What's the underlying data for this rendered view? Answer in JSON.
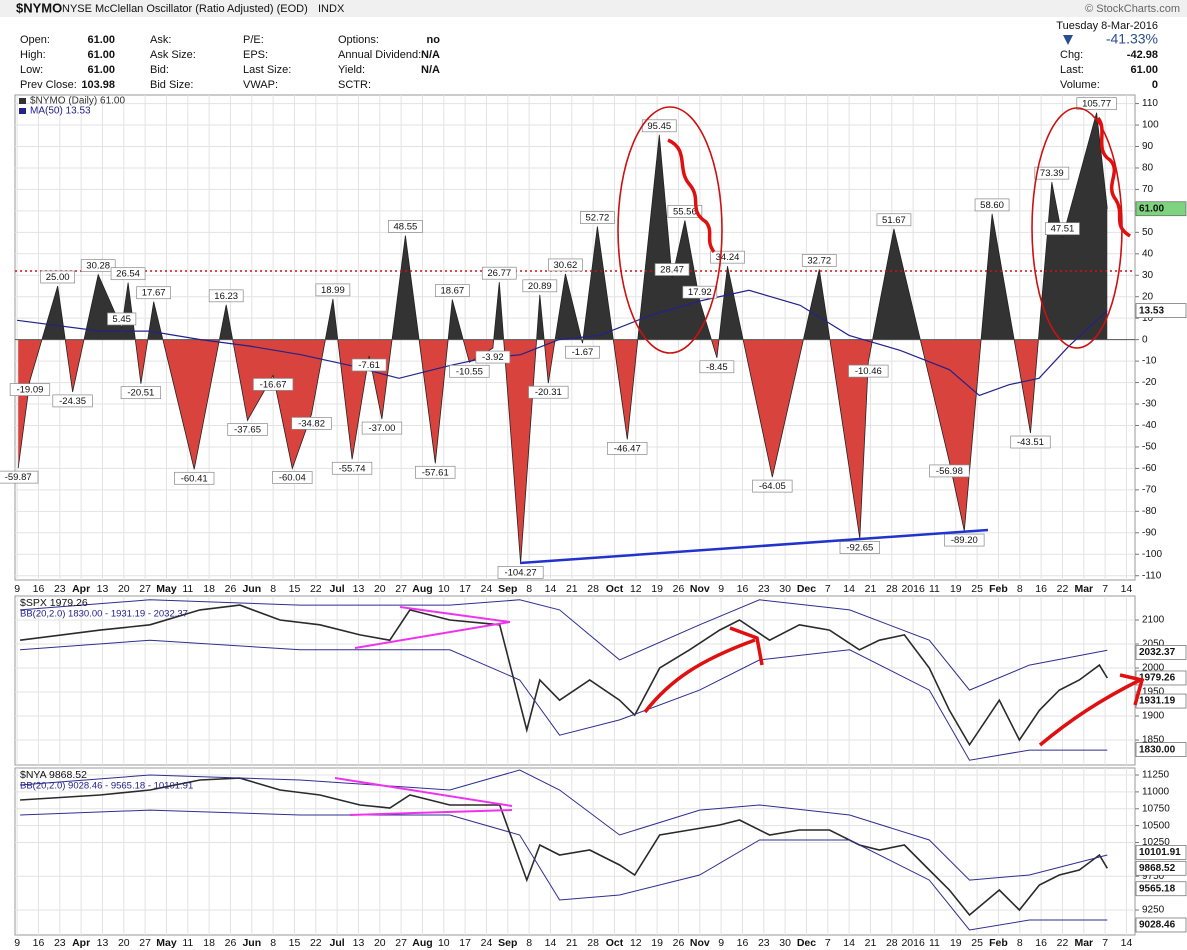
{
  "header": {
    "symbol": "$NYMO",
    "name": "NYSE McClellan Oscillator (Ratio Adjusted) (EOD)",
    "exchange": "INDX",
    "copyright": "© StockCharts.com",
    "date": "Tuesday  8-Mar-2016",
    "change_pct": "-41.33%",
    "fields": [
      [
        {
          "label": "Open:",
          "value": "61.00"
        },
        {
          "label": "Ask:"
        },
        {
          "label": "P/E:"
        },
        {
          "label": "Options:",
          "value": "no"
        }
      ],
      [
        {
          "label": "High:",
          "value": "61.00"
        },
        {
          "label": "Ask Size:"
        },
        {
          "label": "EPS:"
        },
        {
          "label": "Annual Dividend:",
          "value": "N/A"
        }
      ],
      [
        {
          "label": "Low:",
          "value": "61.00"
        },
        {
          "label": "Bid:"
        },
        {
          "label": "Last Size:"
        },
        {
          "label": "Yield:",
          "value": "N/A"
        }
      ],
      [
        {
          "label": "Prev Close:",
          "value": "103.98"
        },
        {
          "label": "Bid Size:"
        },
        {
          "label": "VWAP:"
        },
        {
          "label": "SCTR:"
        }
      ]
    ],
    "quote": [
      {
        "label": "Chg:",
        "value": "-42.98"
      },
      {
        "label": "Last:",
        "value": "61.00"
      },
      {
        "label": "Volume:",
        "value": "0"
      }
    ]
  },
  "chart_data": [
    {
      "type": "area",
      "xlim": [
        -0.1,
        52.4
      ],
      "xticks": [
        {
          "value": 0,
          "label": "9"
        },
        {
          "value": 1,
          "label": "16"
        },
        {
          "value": 2,
          "label": "23"
        },
        {
          "value": 3,
          "label": "Apr"
        },
        {
          "value": 4,
          "label": "13"
        },
        {
          "value": 5,
          "label": "20"
        },
        {
          "value": 6,
          "label": "27"
        },
        {
          "value": 7,
          "label": "May"
        },
        {
          "value": 8,
          "label": "11"
        },
        {
          "value": 9,
          "label": "18"
        },
        {
          "value": 10,
          "label": "26"
        },
        {
          "value": 11,
          "label": "Jun"
        },
        {
          "value": 12,
          "label": "8"
        },
        {
          "value": 13,
          "label": "15"
        },
        {
          "value": 14,
          "label": "22"
        },
        {
          "value": 15,
          "label": "Jul"
        },
        {
          "value": 16,
          "label": "13"
        },
        {
          "value": 17,
          "label": "20"
        },
        {
          "value": 18,
          "label": "27"
        },
        {
          "value": 19,
          "label": "Aug"
        },
        {
          "value": 20,
          "label": "10"
        },
        {
          "value": 21,
          "label": "17"
        },
        {
          "value": 22,
          "label": "24"
        },
        {
          "value": 23,
          "label": "Sep"
        },
        {
          "value": 24,
          "label": "8"
        },
        {
          "value": 25,
          "label": "14"
        },
        {
          "value": 26,
          "label": "21"
        },
        {
          "value": 27,
          "label": "28"
        },
        {
          "value": 28,
          "label": "Oct"
        },
        {
          "value": 29,
          "label": "12"
        },
        {
          "value": 30,
          "label": "19"
        },
        {
          "value": 31,
          "label": "26"
        },
        {
          "value": 32,
          "label": "Nov"
        },
        {
          "value": 33,
          "label": "9"
        },
        {
          "value": 34,
          "label": "16"
        },
        {
          "value": 35,
          "label": "23"
        },
        {
          "value": 36,
          "label": "30"
        },
        {
          "value": 37,
          "label": "Dec"
        },
        {
          "value": 38,
          "label": "7"
        },
        {
          "value": 39,
          "label": "14"
        },
        {
          "value": 40,
          "label": "21"
        },
        {
          "value": 41,
          "label": "28"
        },
        {
          "value": 42,
          "label": "2016"
        },
        {
          "value": 43,
          "label": "11"
        },
        {
          "value": 44,
          "label": "19"
        },
        {
          "value": 45,
          "label": "25"
        },
        {
          "value": 46,
          "label": "Feb"
        },
        {
          "value": 47,
          "label": "8"
        },
        {
          "value": 48,
          "label": "16"
        },
        {
          "value": 49,
          "label": "22"
        },
        {
          "value": 50,
          "label": "Mar"
        },
        {
          "value": 51,
          "label": "7"
        },
        {
          "value": 52,
          "label": "14"
        }
      ],
      "ylim": [
        -112,
        114
      ],
      "yticks": [
        -110,
        -100,
        -90,
        -80,
        -70,
        -60,
        -50,
        -40,
        -30,
        -20,
        -10,
        0,
        10,
        20,
        30,
        40,
        50,
        60,
        70,
        80,
        90,
        100,
        110
      ],
      "reference_line": 32,
      "negative_color": "#d9433d",
      "series": [
        {
          "name": "$NYMO (Daily) 61.00",
          "color": "#333333",
          "x": [
            0.05,
            0.6,
            1.9,
            2.6,
            3.8,
            4.9,
            5.2,
            5.8,
            6.4,
            8.3,
            9.8,
            10.8,
            12.0,
            12.9,
            13.8,
            14.8,
            15.7,
            16.5,
            17.1,
            18.2,
            19.6,
            20.4,
            21.2,
            22.3,
            22.6,
            23.6,
            24.5,
            24.9,
            25.7,
            26.5,
            27.2,
            28.6,
            30.1,
            30.7,
            31.3,
            32.0,
            32.8,
            33.3,
            35.4,
            37.6,
            39.5,
            39.9,
            41.1,
            43.7,
            44.4,
            45.7,
            47.5,
            48.5,
            49.0,
            50.6,
            51.1
          ],
          "values": [
            -59.87,
            -19.09,
            25.0,
            -24.35,
            30.28,
            5.45,
            26.54,
            -20.51,
            17.67,
            -60.41,
            16.23,
            -37.65,
            -16.67,
            -60.04,
            -34.82,
            18.99,
            -55.74,
            -7.61,
            -37.0,
            48.55,
            -57.61,
            18.67,
            -10.55,
            -3.92,
            26.77,
            -104.27,
            20.89,
            -20.31,
            30.62,
            -1.67,
            52.72,
            -46.47,
            95.45,
            28.47,
            55.56,
            17.92,
            -8.45,
            34.24,
            -64.05,
            32.72,
            -92.65,
            -10.46,
            51.67,
            -56.98,
            -89.2,
            58.6,
            -43.51,
            73.39,
            47.51,
            105.77,
            61.0
          ],
          "value_labels": [
            "-59.87",
            "-19.09",
            "25.00",
            "-24.35",
            "30.28",
            "5.45",
            "26.54",
            "-20.51",
            "17.67",
            "-60.41",
            "16.23",
            "-37.65",
            "-16.67",
            "-60.04",
            "-34.82",
            "18.99",
            "-55.74",
            "-7.61",
            "-37.00",
            "48.55",
            "-57.61",
            "18.67",
            "-10.55",
            "-3.92",
            "26.77",
            "-104.27",
            "20.89",
            "-20.31",
            "30.62",
            "-1.67",
            "52.72",
            "-46.47",
            "95.45",
            "28.47",
            "55.56",
            "17.92",
            "-8.45",
            "34.24",
            "-64.05",
            "32.72",
            "-92.65",
            "-10.46",
            "51.67",
            "-56.98",
            "-89.20",
            "58.60",
            "-43.51",
            "73.39",
            "47.51",
            "105.77",
            null
          ]
        },
        {
          "name": "MA(50) 13.53",
          "color": "#22228a",
          "x": [
            0,
            3.9,
            6.2,
            8.6,
            10.9,
            13.3,
            15.6,
            17.9,
            20.3,
            21.7,
            23.6,
            25.4,
            27.3,
            29.6,
            32.0,
            34.3,
            36.7,
            39.0,
            41.4,
            43.7,
            45.1,
            46.5,
            47.9,
            49.3,
            51.1
          ],
          "values": [
            9,
            4,
            4,
            0,
            -3,
            -7,
            -12,
            -18,
            -12,
            -9,
            -7,
            0,
            2,
            11,
            18,
            23,
            16,
            2,
            -5,
            -14,
            -26,
            -21,
            -18,
            -3,
            13.53
          ]
        }
      ],
      "price_tags": [
        {
          "value": 61,
          "label": "61.00",
          "color": "#7ed37e"
        },
        {
          "value": 13.53,
          "label": "13.53",
          "color": "#ffffff"
        }
      ]
    },
    {
      "type": "line",
      "title": "$SPX 1979.26",
      "subtitle": "BB(20,2.0) 1830.00 - 1931.19 - 2032.37",
      "xlim": [
        -0.1,
        52.4
      ],
      "ylim": [
        1798,
        2150
      ],
      "yticks": [
        1850,
        1900,
        1950,
        2000,
        2050,
        2100
      ],
      "series": [
        {
          "color": "#2a2a2a",
          "x": [
            0.14,
            3.89,
            6.23,
            8.57,
            10.44,
            12.32,
            14.19,
            16.07,
            17.47,
            18.41,
            20.28,
            22.62,
            23.89,
            24.5,
            25.43,
            26.84,
            28.24,
            28.95,
            30.12,
            31.52,
            32.93,
            33.86,
            35.27,
            36.67,
            38.08,
            39.48,
            40.42,
            41.59,
            42.76,
            43.7,
            44.64,
            46.04,
            46.98,
            47.92,
            48.85,
            49.79,
            50.73,
            51.1
          ],
          "values": [
            2058,
            2079,
            2090,
            2121,
            2131,
            2100,
            2090,
            2069,
            2058,
            2121,
            2100,
            2090,
            1871,
            1975,
            1933,
            1975,
            1933,
            1902,
            2000,
            2038,
            2079,
            2100,
            2058,
            2090,
            2079,
            2038,
            2058,
            2069,
            2000,
            1912,
            1840,
            1933,
            1850,
            1912,
            1954,
            1975,
            2006,
            1979.26
          ]
        },
        {
          "color": "#2e2e8f",
          "x": [
            0.14,
            6.23,
            13.26,
            20.28,
            23.56,
            25.43,
            28.24,
            31.99,
            34.8,
            39.02,
            42.76,
            44.64,
            47.45,
            51.1
          ],
          "values": [
            2121,
            2142,
            2131,
            2131,
            2142,
            2121,
            2017,
            2090,
            2142,
            2121,
            2058,
            1954,
            2006,
            2037
          ]
        },
        {
          "color": "#2e2e8f",
          "x": [
            0.14,
            6.23,
            13.26,
            20.28,
            23.56,
            25.43,
            28.24,
            31.99,
            34.8,
            39.02,
            42.76,
            44.64,
            47.45,
            51.1
          ],
          "values": [
            2038,
            2058,
            2038,
            2038,
            1975,
            1860,
            1892,
            1954,
            2017,
            2038,
            1954,
            1808,
            1829,
            1829
          ]
        }
      ],
      "price_tags": [
        {
          "value": 2032.37,
          "label": "2032.37",
          "color": "#ffffff"
        },
        {
          "value": 1979.26,
          "label": "1979.26",
          "color": "#ffffff"
        },
        {
          "value": 1931.19,
          "label": "1931.19",
          "color": "#ffffff"
        },
        {
          "value": 1830,
          "label": "1830.00",
          "color": "#ffffff"
        }
      ]
    },
    {
      "type": "line",
      "title": "$NYA 9868.52",
      "subtitle": "BB(20,2.0) 9028.46 - 9565.18 - 10101.91",
      "xlim": [
        -0.1,
        52.4
      ],
      "ylim": [
        8880,
        11354
      ],
      "yticks": [
        9250,
        9750,
        10250,
        10500,
        10750,
        11000,
        11250
      ],
      "series": [
        {
          "color": "#2a2a2a",
          "x": [
            0.14,
            3.89,
            6.23,
            8.57,
            10.44,
            12.32,
            14.19,
            16.07,
            17.47,
            18.41,
            20.28,
            22.62,
            23.89,
            24.5,
            25.43,
            26.84,
            28.24,
            28.95,
            30.12,
            31.52,
            32.93,
            33.86,
            35.27,
            36.67,
            38.08,
            39.48,
            40.42,
            41.59,
            42.76,
            43.7,
            44.64,
            46.04,
            46.98,
            47.92,
            48.85,
            49.79,
            50.73,
            51.1
          ],
          "values": [
            10880,
            10954,
            11028,
            11176,
            11205,
            11028,
            10954,
            10806,
            10761,
            10954,
            10806,
            10806,
            9694,
            10213,
            10065,
            10139,
            9917,
            9769,
            10361,
            10435,
            10509,
            10583,
            10361,
            10435,
            10435,
            10213,
            10139,
            10213,
            9843,
            9546,
            9176,
            9546,
            9250,
            9620,
            9769,
            9843,
            10065,
            9868.52
          ]
        },
        {
          "color": "#2e2e8f",
          "x": [
            0.14,
            6.23,
            13.26,
            20.28,
            23.56,
            25.43,
            28.24,
            31.99,
            34.8,
            39.02,
            42.76,
            44.64,
            47.45,
            51.1
          ],
          "values": [
            11102,
            11250,
            11176,
            11028,
            11324,
            11028,
            10361,
            10731,
            10806,
            10657,
            10287,
            9694,
            9769,
            10065
          ]
        },
        {
          "color": "#2e2e8f",
          "x": [
            0.14,
            6.23,
            13.26,
            20.28,
            23.56,
            25.43,
            28.24,
            31.99,
            34.8,
            39.02,
            42.76,
            44.64,
            47.45,
            51.1
          ],
          "values": [
            10657,
            10731,
            10657,
            10657,
            10361,
            9398,
            9472,
            9769,
            10287,
            10287,
            9694,
            8954,
            9102,
            9102
          ]
        }
      ],
      "price_tags": [
        {
          "value": 10101.91,
          "label": "10101.91",
          "color": "#ffffff"
        },
        {
          "value": 9868.52,
          "label": "9868.52",
          "color": "#ffffff"
        },
        {
          "value": 9565.18,
          "label": "9565.18",
          "color": "#ffffff"
        },
        {
          "value": 9028.46,
          "label": "9028.46",
          "color": "#ffffff"
        }
      ]
    }
  ]
}
